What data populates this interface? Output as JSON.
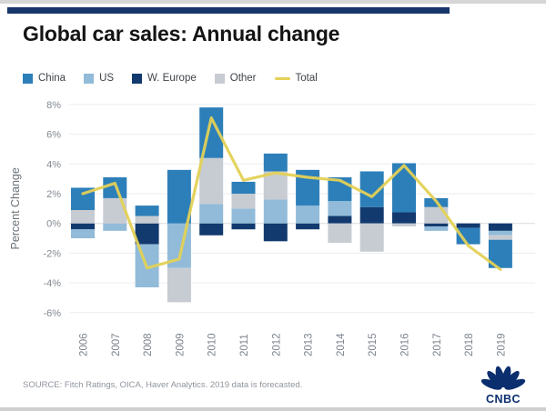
{
  "page": {
    "title": "Global car sales: Annual change",
    "source_note": "SOURCE: Fitch Ratings, OICA, Haver Analytics. 2019 data is forecasted.",
    "brand": "CNBC",
    "accent_bar_color": "#16366c",
    "brand_color": "#0b2e6e"
  },
  "chart_data": {
    "type": "bar",
    "subtype": "stacked-bar-with-line",
    "title": "Global car sales: Annual change",
    "ylabel": "Percent Change",
    "xlabel": "",
    "ylim": [
      -6,
      8
    ],
    "yticks": [
      8,
      6,
      4,
      2,
      0,
      -2,
      -4,
      -6
    ],
    "ytick_labels": [
      "8%",
      "6%",
      "4%",
      "2%",
      "0%",
      "-2%",
      "-4%",
      "-6%"
    ],
    "grid": true,
    "legend_position": "top",
    "categories": [
      "2006",
      "2007",
      "2008",
      "2009",
      "2010",
      "2011",
      "2012",
      "2013",
      "2014",
      "2015",
      "2016",
      "2017",
      "2018",
      "2019"
    ],
    "series": [
      {
        "name": "China",
        "color": "#2d7fba",
        "values": [
          1.5,
          1.4,
          0.7,
          3.6,
          3.4,
          0.8,
          1.2,
          2.4,
          1.6,
          2.4,
          3.3,
          0.6,
          -1.1,
          -1.9
        ]
      },
      {
        "name": "US",
        "color": "#92bbd9",
        "values": [
          -0.6,
          -0.5,
          -2.9,
          -3.0,
          1.3,
          1.0,
          1.6,
          1.2,
          1.0,
          0,
          0,
          -0.3,
          0,
          -0.3
        ]
      },
      {
        "name": "W. Europe",
        "color": "#123a6e",
        "values": [
          -0.4,
          0,
          -1.4,
          0,
          -0.8,
          -0.4,
          -1.2,
          -0.4,
          0.5,
          1.1,
          0.75,
          -0.2,
          -0.3,
          -0.5
        ]
      },
      {
        "name": "Other",
        "color": "#c7cbd2",
        "values": [
          0.9,
          1.7,
          0.5,
          -2.3,
          3.1,
          1.0,
          1.9,
          0,
          -1.3,
          -1.9,
          -0.2,
          1.1,
          0,
          -0.3
        ]
      }
    ],
    "line": {
      "name": "Total",
      "color": "#e3d156",
      "values": [
        2.0,
        2.7,
        -3.0,
        -2.4,
        7.1,
        2.9,
        3.4,
        3.1,
        2.9,
        1.8,
        3.9,
        1.5,
        -1.5,
        -3.1
      ]
    },
    "stack_order_from_baseline": [
      "W. Europe",
      "US",
      "Other",
      "China"
    ],
    "axis_text_color": "#828991",
    "grid_color": "#ebedf0",
    "zero_line_color": "#d9dce1"
  }
}
